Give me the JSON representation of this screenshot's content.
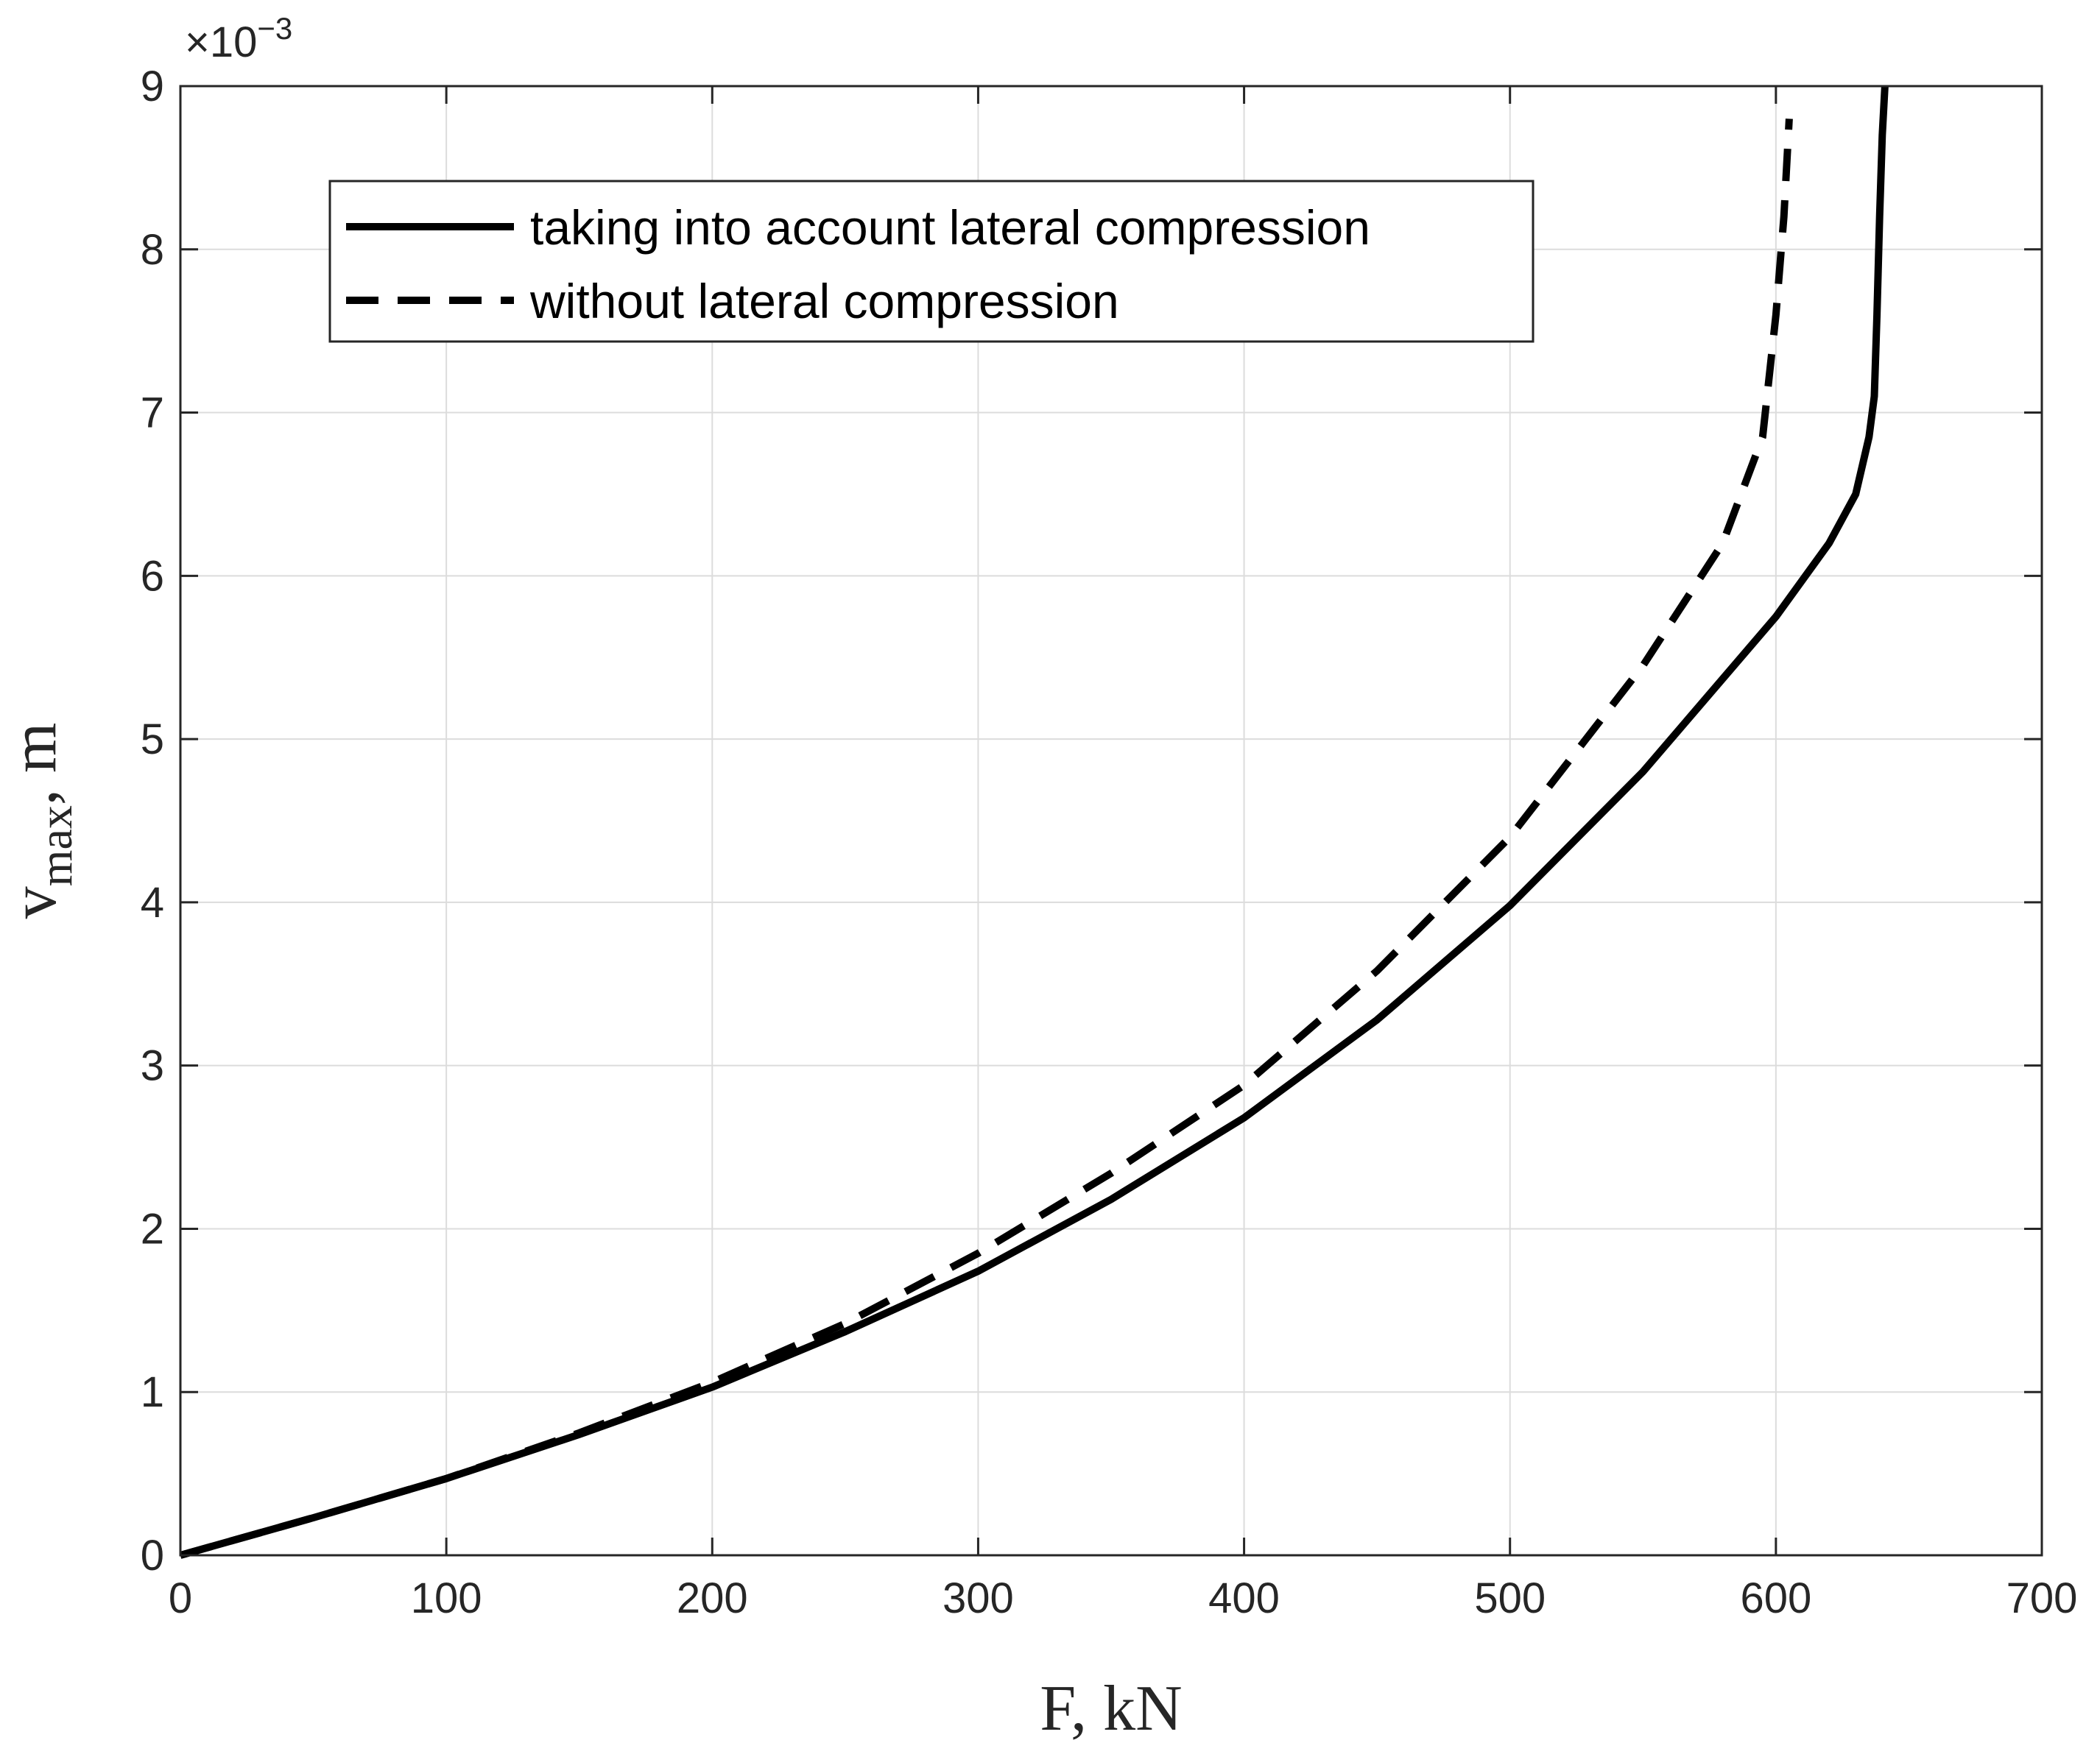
{
  "chart_data": {
    "type": "line",
    "title": "",
    "xlabel": "F, kN",
    "ylabel_main": "v",
    "ylabel_sub": "max",
    "ylabel_unit": ", m",
    "y_multiplier": "×10",
    "y_multiplier_exp": "−3",
    "xlim": [
      0,
      700
    ],
    "ylim": [
      0,
      9
    ],
    "y_scale_note": "values in units of 1e-3 m",
    "xticks": [
      0,
      100,
      200,
      300,
      400,
      500,
      600,
      700
    ],
    "yticks": [
      0,
      1,
      2,
      3,
      4,
      5,
      6,
      7,
      8,
      9
    ],
    "grid": true,
    "legend_position": "top-left",
    "series": [
      {
        "name": "taking into account lateral compression",
        "style": "solid",
        "color": "#000000",
        "x": [
          0,
          50,
          100,
          150,
          200,
          250,
          300,
          350,
          400,
          450,
          500,
          550,
          600,
          620,
          630,
          635,
          637,
          638,
          639,
          640,
          641
        ],
        "y": [
          0,
          0.23,
          0.47,
          0.74,
          1.03,
          1.37,
          1.74,
          2.18,
          2.68,
          3.28,
          3.98,
          4.8,
          5.75,
          6.2,
          6.5,
          6.85,
          7.1,
          7.6,
          8.2,
          8.7,
          9.0
        ]
      },
      {
        "name": "without lateral compression",
        "style": "dashed",
        "color": "#000000",
        "x": [
          0,
          50,
          100,
          150,
          200,
          250,
          300,
          350,
          400,
          450,
          500,
          550,
          580,
          595,
          600,
          603,
          605
        ],
        "y": [
          0,
          0.23,
          0.47,
          0.75,
          1.06,
          1.42,
          1.85,
          2.34,
          2.88,
          3.58,
          4.4,
          5.45,
          6.2,
          6.85,
          7.6,
          8.2,
          8.8
        ]
      }
    ]
  }
}
